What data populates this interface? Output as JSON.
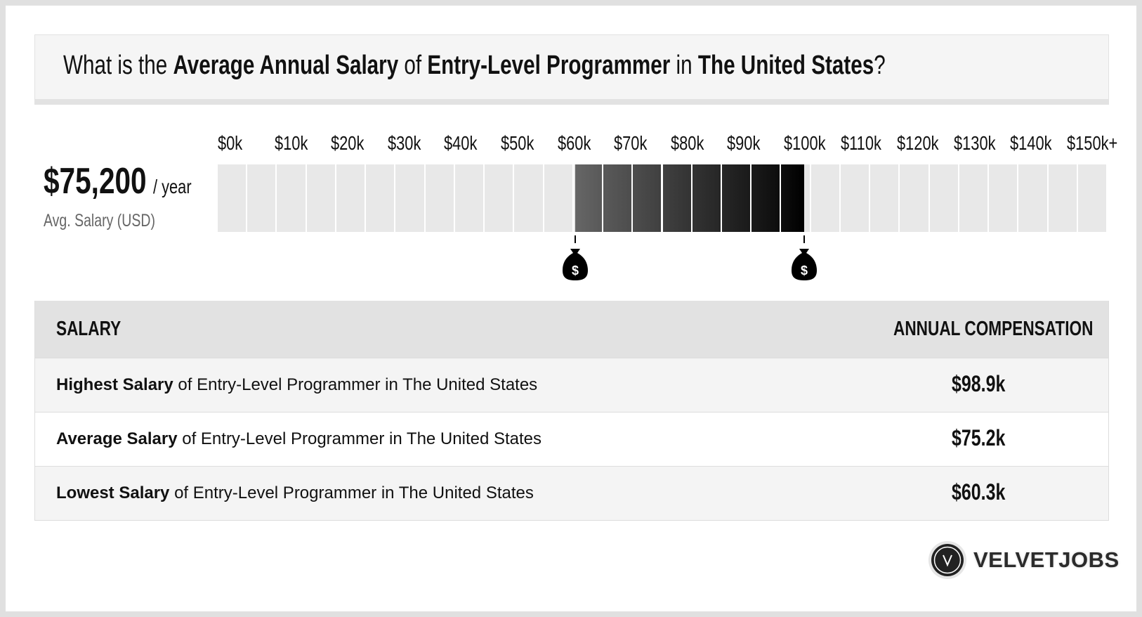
{
  "title": {
    "prefix": "What is the ",
    "metric": "Average Annual Salary",
    "of": " of ",
    "job": "Entry-Level Programmer",
    "in": " in ",
    "location": "The United States",
    "suffix": "?"
  },
  "summary": {
    "value": "$75,200",
    "unit": "/ year",
    "label": "Avg. Salary (USD)"
  },
  "chart_data": {
    "type": "range-bar",
    "tick_labels": [
      "$0k",
      "$10k",
      "$20k",
      "$30k",
      "$40k",
      "$50k",
      "$60k",
      "$70k",
      "$80k",
      "$90k",
      "$100k",
      "$110k",
      "$120k",
      "$130k",
      "$140k",
      "$150k+"
    ],
    "xlim": [
      0,
      150
    ],
    "segment_size": 5,
    "range": {
      "low": 60.3,
      "high": 98.9
    },
    "markers": [
      60.3,
      98.9
    ],
    "colors": {
      "base": "#e8e8e8",
      "range_start": "#666666",
      "range_end": "#000000"
    }
  },
  "table": {
    "headers": [
      "SALARY",
      "ANNUAL COMPENSATION"
    ],
    "rows": [
      {
        "bold": "Highest Salary",
        "rest": " of Entry-Level Programmer in The United States",
        "value": "$98.9k"
      },
      {
        "bold": "Average Salary",
        "rest": " of Entry-Level Programmer in The United States",
        "value": "$75.2k"
      },
      {
        "bold": "Lowest Salary",
        "rest": " of Entry-Level Programmer in The United States",
        "value": "$60.3k"
      }
    ]
  },
  "logo": {
    "letter": "V",
    "text": "VELVETJOBS"
  }
}
